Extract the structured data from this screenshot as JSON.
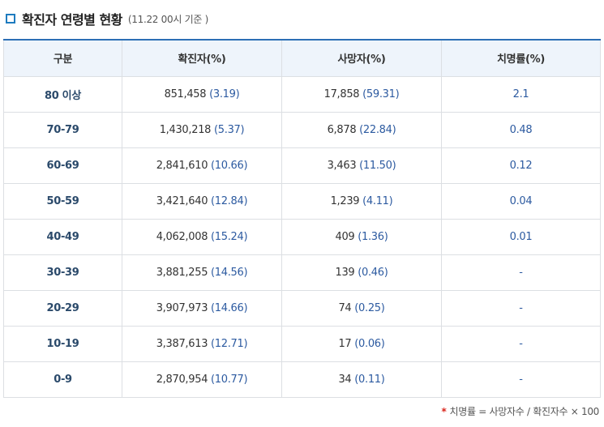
{
  "title": "확진자 연령별 현황",
  "subtitle": "(11.22 00시 기준 )",
  "table": {
    "headers": [
      "구분",
      "확진자(%)",
      "사망자(%)",
      "치명률(%)"
    ],
    "rows": [
      {
        "age": "80 이상",
        "cases": "851,458",
        "cases_pct": "(3.19)",
        "deaths": "17,858",
        "deaths_pct": "(59.31)",
        "cfr": "2.1"
      },
      {
        "age": "70-79",
        "cases": "1,430,218",
        "cases_pct": "(5.37)",
        "deaths": "6,878",
        "deaths_pct": "(22.84)",
        "cfr": "0.48"
      },
      {
        "age": "60-69",
        "cases": "2,841,610",
        "cases_pct": "(10.66)",
        "deaths": "3,463",
        "deaths_pct": "(11.50)",
        "cfr": "0.12"
      },
      {
        "age": "50-59",
        "cases": "3,421,640",
        "cases_pct": "(12.84)",
        "deaths": "1,239",
        "deaths_pct": "(4.11)",
        "cfr": "0.04"
      },
      {
        "age": "40-49",
        "cases": "4,062,008",
        "cases_pct": "(15.24)",
        "deaths": "409",
        "deaths_pct": "(1.36)",
        "cfr": "0.01"
      },
      {
        "age": "30-39",
        "cases": "3,881,255",
        "cases_pct": "(14.56)",
        "deaths": "139",
        "deaths_pct": "(0.46)",
        "cfr": "-"
      },
      {
        "age": "20-29",
        "cases": "3,907,973",
        "cases_pct": "(14.66)",
        "deaths": "74",
        "deaths_pct": "(0.25)",
        "cfr": "-"
      },
      {
        "age": "10-19",
        "cases": "3,387,613",
        "cases_pct": "(12.71)",
        "deaths": "17",
        "deaths_pct": "(0.06)",
        "cfr": "-"
      },
      {
        "age": "0-9",
        "cases": "2,870,954",
        "cases_pct": "(10.77)",
        "deaths": "34",
        "deaths_pct": "(0.11)",
        "cfr": "-"
      }
    ]
  },
  "footnote": {
    "marker": "*",
    "text": "치명률 = 사망자수 / 확진자수 × 100"
  },
  "colors": {
    "accent": "#2c6fb5",
    "header_bg": "#eef4fb",
    "percent_text": "#2c5aa0",
    "footnote_marker": "#d9241b"
  },
  "icons": {
    "title_marker": "square-bullet-icon"
  }
}
